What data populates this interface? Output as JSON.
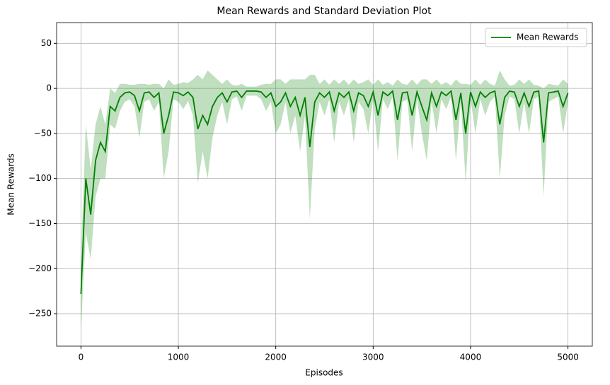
{
  "chart_data": {
    "type": "line",
    "title": "Mean Rewards and Standard Deviation Plot",
    "x_label": "Episodes",
    "y_label": "Mean Rewards",
    "x": [
      0,
      50,
      100,
      150,
      200,
      250,
      300,
      350,
      400,
      450,
      500,
      550,
      600,
      650,
      700,
      750,
      800,
      850,
      900,
      950,
      1000,
      1050,
      1100,
      1150,
      1200,
      1250,
      1300,
      1350,
      1400,
      1450,
      1500,
      1550,
      1600,
      1650,
      1700,
      1750,
      1800,
      1850,
      1900,
      1950,
      2000,
      2050,
      2100,
      2150,
      2200,
      2250,
      2300,
      2350,
      2400,
      2450,
      2500,
      2550,
      2600,
      2650,
      2700,
      2750,
      2800,
      2850,
      2900,
      2950,
      3000,
      3050,
      3100,
      3150,
      3200,
      3250,
      3300,
      3350,
      3400,
      3450,
      3500,
      3550,
      3600,
      3650,
      3700,
      3750,
      3800,
      3850,
      3900,
      3950,
      4000,
      4050,
      4100,
      4150,
      4200,
      4250,
      4300,
      4350,
      4400,
      4450,
      4500,
      4550,
      4600,
      4650,
      4700,
      4750,
      4800,
      4850,
      4900,
      4950,
      5000
    ],
    "series": [
      {
        "name": "Mean Rewards",
        "color": "#008000",
        "values": [
          -228,
          -100,
          -140,
          -80,
          -60,
          -70,
          -20,
          -25,
          -10,
          -5,
          -4,
          -8,
          -25,
          -5,
          -4,
          -10,
          -5,
          -50,
          -30,
          -4,
          -5,
          -8,
          -4,
          -10,
          -45,
          -30,
          -40,
          -20,
          -10,
          -5,
          -15,
          -4,
          -3,
          -10,
          -3,
          -3,
          -3,
          -4,
          -10,
          -5,
          -20,
          -15,
          -5,
          -20,
          -10,
          -30,
          -10,
          -65,
          -15,
          -5,
          -10,
          -4,
          -25,
          -5,
          -10,
          -4,
          -25,
          -5,
          -8,
          -20,
          -4,
          -30,
          -4,
          -8,
          -3,
          -35,
          -5,
          -4,
          -30,
          -4,
          -20,
          -35,
          -5,
          -20,
          -4,
          -8,
          -3,
          -35,
          -5,
          -50,
          -4,
          -20,
          -4,
          -10,
          -5,
          -3,
          -40,
          -10,
          -3,
          -4,
          -20,
          -5,
          -20,
          -4,
          -3,
          -60,
          -5,
          -4,
          -3,
          -20,
          -5
        ],
        "std": [
          40,
          60,
          50,
          40,
          40,
          30,
          20,
          20,
          15,
          10,
          8,
          12,
          30,
          10,
          8,
          15,
          10,
          50,
          40,
          8,
          10,
          15,
          10,
          20,
          60,
          40,
          60,
          35,
          20,
          10,
          25,
          8,
          6,
          15,
          5,
          5,
          5,
          8,
          15,
          10,
          30,
          25,
          10,
          30,
          20,
          40,
          20,
          80,
          30,
          10,
          20,
          8,
          35,
          10,
          20,
          8,
          35,
          10,
          15,
          30,
          8,
          40,
          8,
          15,
          6,
          45,
          10,
          8,
          40,
          8,
          30,
          45,
          10,
          30,
          8,
          15,
          6,
          45,
          10,
          55,
          8,
          30,
          8,
          20,
          10,
          6,
          60,
          20,
          6,
          8,
          30,
          10,
          30,
          8,
          6,
          60,
          10,
          8,
          6,
          30,
          10
        ]
      }
    ],
    "xlim": [
      -250,
      5250
    ],
    "ylim": [
      -286,
      73
    ],
    "xticks": [
      0,
      1000,
      2000,
      3000,
      4000,
      5000
    ],
    "yticks": [
      {
        "value": -250,
        "label": "−250"
      },
      {
        "value": -200,
        "label": "−200"
      },
      {
        "value": -150,
        "label": "−150"
      },
      {
        "value": -100,
        "label": "−100"
      },
      {
        "value": -50,
        "label": "−50"
      },
      0,
      50
    ],
    "grid": true,
    "legend": "upper right"
  }
}
